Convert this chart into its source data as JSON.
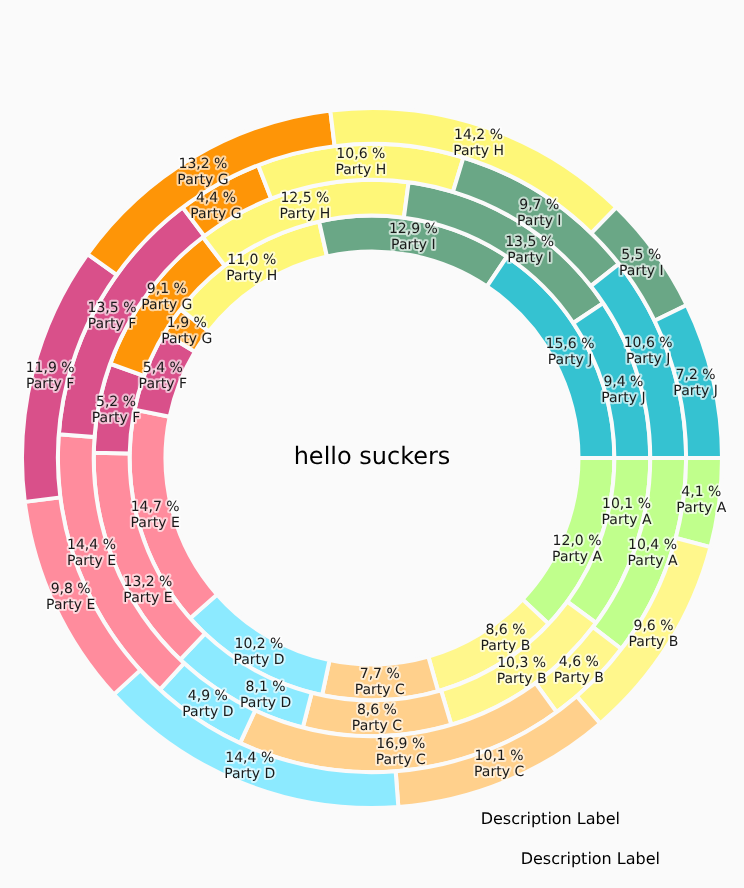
{
  "chart_data": {
    "type": "donut",
    "title": "hello suckers",
    "categories": [
      "Party A",
      "Party B",
      "Party C",
      "Party D",
      "Party E",
      "Party F",
      "Party G",
      "Party H",
      "Party I",
      "Party J"
    ],
    "colors": [
      "#c0ff8c",
      "#fff78c",
      "#ffd08c",
      "#8ceaff",
      "#ff8c9d",
      "#d9508a",
      "#fe9507",
      "#fef778",
      "#6aa786",
      "#35c2d1"
    ],
    "series": [
      {
        "values": [
          12.0,
          8.6,
          7.7,
          10.2,
          14.7,
          5.4,
          1.9,
          11.0,
          12.9,
          15.6
        ],
        "value_labels": [
          "12,0 %",
          "8,6 %",
          "7,7 %",
          "10,2 %",
          "14,7 %",
          "5,4 %",
          "1,9 %",
          "11,0 %",
          "12,9 %",
          "15,6 %"
        ]
      },
      {
        "values": [
          10.1,
          10.3,
          8.6,
          8.1,
          13.2,
          5.2,
          9.1,
          12.5,
          13.5,
          9.4
        ],
        "value_labels": [
          "10,1 %",
          "10,3 %",
          "8,6 %",
          "8,1 %",
          "13,2 %",
          "5,2 %",
          "9,1 %",
          "12,5 %",
          "13,5 %",
          "9,4 %"
        ]
      },
      {
        "values": [
          10.4,
          4.6,
          16.9,
          4.9,
          14.4,
          13.5,
          4.4,
          10.6,
          9.7,
          10.6
        ],
        "value_labels": [
          "10,4 %",
          "4,6 %",
          "16,9 %",
          "4,9 %",
          "14,4 %",
          "13,5 %",
          "4,4 %",
          "10,6 %",
          "9,7 %",
          "10,6 %"
        ]
      },
      {
        "values": [
          4.1,
          9.6,
          10.1,
          14.4,
          9.8,
          11.9,
          13.2,
          14.2,
          5.5,
          7.2
        ],
        "value_labels": [
          "4,1 %",
          "9,6 %",
          "10,1 %",
          "14,4 %",
          "9,8 %",
          "11,9 %",
          "13,2 %",
          "14,2 %",
          "5,5 %",
          "7,2 %"
        ]
      }
    ],
    "legend": false,
    "annotations": [
      "Description Label",
      "Description Label"
    ]
  }
}
